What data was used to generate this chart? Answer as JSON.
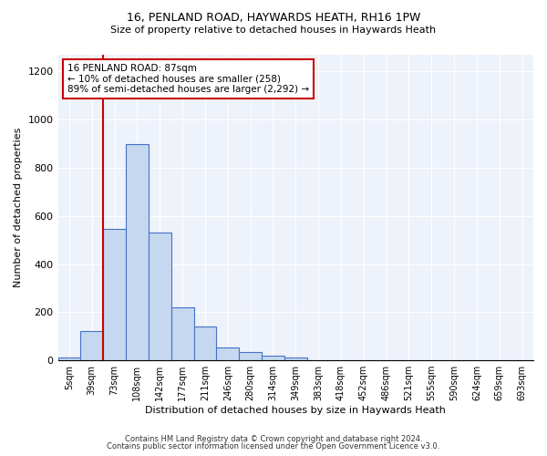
{
  "title1": "16, PENLAND ROAD, HAYWARDS HEATH, RH16 1PW",
  "title2": "Size of property relative to detached houses in Haywards Heath",
  "xlabel": "Distribution of detached houses by size in Haywards Heath",
  "ylabel": "Number of detached properties",
  "footer1": "Contains HM Land Registry data © Crown copyright and database right 2024.",
  "footer2": "Contains public sector information licensed under the Open Government Licence v3.0.",
  "annotation_line1": "16 PENLAND ROAD: 87sqm",
  "annotation_line2": "← 10% of detached houses are smaller (258)",
  "annotation_line3": "89% of semi-detached houses are larger (2,292) →",
  "bar_color": "#c5d8f0",
  "bar_edge_color": "#4472c4",
  "vline_color": "#cc0000",
  "vline_bin_index": 2,
  "bin_labels": [
    "5sqm",
    "39sqm",
    "73sqm",
    "108sqm",
    "142sqm",
    "177sqm",
    "211sqm",
    "246sqm",
    "280sqm",
    "314sqm",
    "349sqm",
    "383sqm",
    "418sqm",
    "452sqm",
    "486sqm",
    "521sqm",
    "555sqm",
    "590sqm",
    "624sqm",
    "659sqm",
    "693sqm"
  ],
  "bar_heights": [
    10,
    120,
    545,
    900,
    530,
    220,
    140,
    55,
    33,
    20,
    10,
    0,
    0,
    0,
    0,
    0,
    0,
    0,
    0,
    0,
    0
  ],
  "ylim": [
    0,
    1270
  ],
  "yticks": [
    0,
    200,
    400,
    600,
    800,
    1000,
    1200
  ],
  "background_color": "#eef2fa"
}
